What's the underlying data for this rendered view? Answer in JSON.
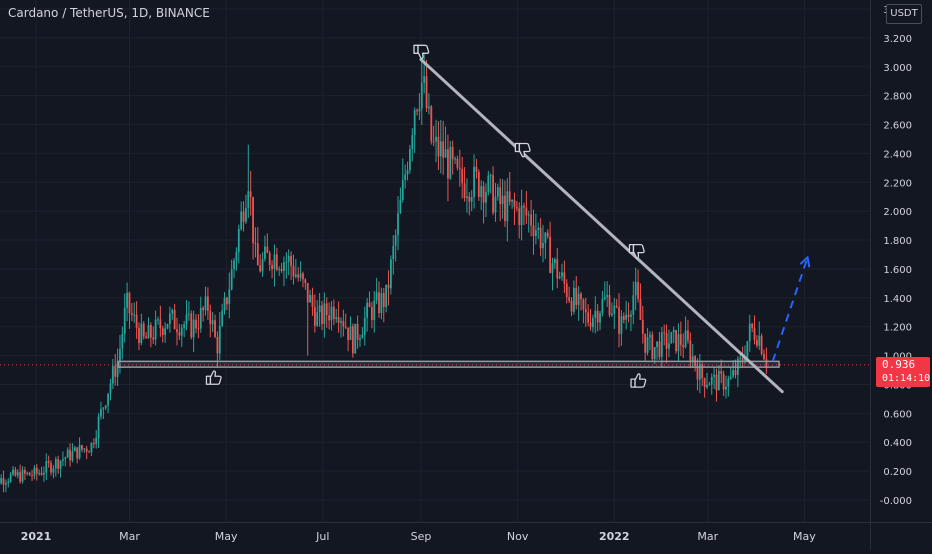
{
  "header": {
    "title": "Cardano / TetherUS, 1D, BINANCE",
    "currency": "USDT"
  },
  "price_tag": {
    "price": "0.936",
    "countdown": "01:14:10"
  },
  "colors": {
    "background": "#131722",
    "up_candle": "#26a69a",
    "down_candle": "#ef5350",
    "trendline": "#b2b5be",
    "support_zone": "#9598a1",
    "projection": "#2962ff",
    "price_tag": "#f23645",
    "axis_text": "#d1d4dc"
  },
  "chart_data": {
    "type": "candlestick",
    "title": "Cardano / TetherUS, 1D, BINANCE",
    "x_tick_labels": [
      "2021",
      "Mar",
      "May",
      "Jul",
      "Sep",
      "Nov",
      "2022",
      "Mar",
      "May"
    ],
    "y_tick_labels": [
      "3.400",
      "3.200",
      "3.000",
      "2.800",
      "2.600",
      "2.400",
      "2.200",
      "2.000",
      "1.800",
      "1.600",
      "1.400",
      "1.200",
      "1.000",
      "0.800",
      "0.600",
      "0.400",
      "0.200",
      "-0.000"
    ],
    "ylim": [
      -0.1,
      3.45
    ],
    "grid": true,
    "current_price": 0.936,
    "price_path": [
      [
        "2020-12-01",
        0.12
      ],
      [
        "2020-12-15",
        0.16
      ],
      [
        "2021-01-01",
        0.18
      ],
      [
        "2021-01-20",
        0.3
      ],
      [
        "2021-02-05",
        0.38
      ],
      [
        "2021-02-15",
        0.75
      ],
      [
        "2021-02-22",
        0.98
      ],
      [
        "2021-02-27",
        1.35
      ],
      [
        "2021-03-10",
        1.1
      ],
      [
        "2021-03-25",
        1.25
      ],
      [
        "2021-04-10",
        1.2
      ],
      [
        "2021-04-20",
        1.35
      ],
      [
        "2021-04-25",
        1.05
      ],
      [
        "2021-05-05",
        1.6
      ],
      [
        "2021-05-15",
        2.25
      ],
      [
        "2021-05-20",
        1.6
      ],
      [
        "2021-05-30",
        1.7
      ],
      [
        "2021-06-10",
        1.65
      ],
      [
        "2021-06-20",
        1.45
      ],
      [
        "2021-06-28",
        1.25
      ],
      [
        "2021-07-10",
        1.35
      ],
      [
        "2021-07-20",
        1.1
      ],
      [
        "2021-07-30",
        1.3
      ],
      [
        "2021-08-10",
        1.4
      ],
      [
        "2021-08-20",
        2.1
      ],
      [
        "2021-08-28",
        2.75
      ],
      [
        "2021-09-02",
        2.9
      ],
      [
        "2021-09-08",
        2.45
      ],
      [
        "2021-09-15",
        2.4
      ],
      [
        "2021-09-25",
        2.2
      ],
      [
        "2021-10-10",
        2.2
      ],
      [
        "2021-10-20",
        2.05
      ],
      [
        "2021-11-01",
        2.0
      ],
      [
        "2021-11-10",
        1.95
      ],
      [
        "2021-11-25",
        1.6
      ],
      [
        "2021-12-05",
        1.4
      ],
      [
        "2021-12-15",
        1.25
      ],
      [
        "2021-12-28",
        1.4
      ],
      [
        "2022-01-05",
        1.2
      ],
      [
        "2022-01-14",
        1.45
      ],
      [
        "2022-01-20",
        1.1
      ],
      [
        "2022-01-25",
        1.05
      ],
      [
        "2022-02-05",
        1.1
      ],
      [
        "2022-02-15",
        1.1
      ],
      [
        "2022-02-25",
        0.85
      ],
      [
        "2022-03-05",
        0.82
      ],
      [
        "2022-03-15",
        0.82
      ],
      [
        "2022-03-22",
        0.95
      ],
      [
        "2022-03-28",
        1.18
      ],
      [
        "2022-04-02",
        1.15
      ],
      [
        "2022-04-08",
        0.94
      ]
    ],
    "annotations": {
      "resistance_trendline": {
        "from": [
          "2021-09-01",
          3.05
        ],
        "to": [
          "2022-04-17",
          0.75
        ]
      },
      "support_zone": {
        "from": "2021-02-22",
        "to": "2022-04-15",
        "low": 0.92,
        "high": 0.96
      },
      "projection_arrow": {
        "from": [
          "2022-04-11",
          0.96
        ],
        "to": [
          "2022-05-03",
          1.68
        ]
      },
      "markers": [
        {
          "icon": "thumbs-down-icon",
          "date": "2021-09-01",
          "price": 3.1
        },
        {
          "icon": "thumbs-down-icon",
          "date": "2021-11-04",
          "price": 2.42
        },
        {
          "icon": "thumbs-down-icon",
          "date": "2022-01-15",
          "price": 1.72
        },
        {
          "icon": "thumbs-up-icon",
          "date": "2021-04-23",
          "price": 0.85
        },
        {
          "icon": "thumbs-up-icon",
          "date": "2022-01-16",
          "price": 0.83
        }
      ]
    }
  }
}
